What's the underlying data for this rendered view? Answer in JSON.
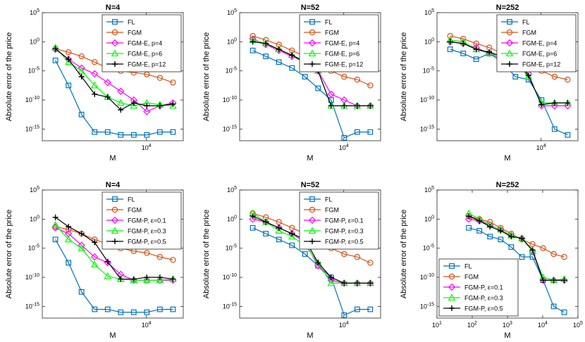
{
  "chart_data": [
    {
      "type": "line",
      "title": "N=4",
      "xlabel": "M",
      "ylabel": "Absolute error of the price",
      "x_scale": "log",
      "y_scale": "log",
      "xlim_log10": [
        1.6,
        4.85
      ],
      "ylim_log10": [
        -17,
        5
      ],
      "xticks": [
        {
          "log": 4,
          "base": "10",
          "exp": "4"
        }
      ],
      "yticks": [
        {
          "log": 5,
          "base": "10",
          "exp": "5"
        },
        {
          "log": 0,
          "base": "10",
          "exp": "0"
        },
        {
          "log": -5,
          "base": "10",
          "exp": "-5"
        },
        {
          "log": -10,
          "base": "10",
          "exp": "-10"
        },
        {
          "log": -15,
          "base": "10",
          "exp": "-15"
        }
      ],
      "legend_position": "top-right",
      "x": [
        80,
        160,
        320,
        640,
        1280,
        2560,
        5120,
        10240,
        20480,
        40960
      ],
      "series": [
        {
          "name": "FL",
          "color": "#0072BD",
          "marker": "square",
          "log10_values": [
            -3.2,
            -7.5,
            -12.5,
            -15.5,
            -15.5,
            -16.0,
            -16.0,
            -16.0,
            -15.5,
            -15.5
          ]
        },
        {
          "name": "FGM",
          "color": "#D95319",
          "marker": "circle",
          "log10_values": [
            -1.2,
            -1.8,
            -2.5,
            -3.5,
            -4.5,
            -5.0,
            -5.3,
            -5.6,
            -6.2,
            -7.0
          ]
        },
        {
          "name": "FGM-E, p=4",
          "color": "#FF00FF",
          "marker": "diamond",
          "x": [
            80,
            160,
            320,
            640,
            1280,
            2560,
            5120,
            10240,
            20480,
            40960
          ],
          "log10_values": [
            -1.3,
            -3.0,
            -4.5,
            -5.5,
            -7.0,
            -8.5,
            -10.0,
            -12.0,
            -11.0,
            -10.5
          ]
        },
        {
          "name": "FGM-E, p=6",
          "color": "#00FF00",
          "marker": "triangle",
          "log10_values": [
            -1.0,
            -3.5,
            -5.0,
            -7.5,
            -9.5,
            -10.5,
            -11.0,
            -10.5,
            -10.8,
            -11.0
          ]
        },
        {
          "name": "FGM-E, p=12",
          "color": "#000000",
          "marker": "plus",
          "log10_values": [
            -1.2,
            -3.0,
            -6.0,
            -9.0,
            -9.5,
            -11.7,
            -10.5,
            -11.0,
            -11.0,
            -10.7
          ]
        }
      ]
    },
    {
      "type": "line",
      "title": "N=52",
      "xlabel": "M",
      "ylabel": "Absolute error of the price",
      "x_scale": "log",
      "y_scale": "log",
      "xlim_log10": [
        1.6,
        4.85
      ],
      "ylim_log10": [
        -17,
        5
      ],
      "xticks": [
        {
          "log": 4,
          "base": "10",
          "exp": "4"
        }
      ],
      "yticks": [
        {
          "log": 5,
          "base": "10",
          "exp": "5"
        },
        {
          "log": 0,
          "base": "10",
          "exp": "0"
        },
        {
          "log": -5,
          "base": "10",
          "exp": "-5"
        },
        {
          "log": -10,
          "base": "10",
          "exp": "-10"
        },
        {
          "log": -15,
          "base": "10",
          "exp": "-15"
        }
      ],
      "legend_position": "top-right",
      "x": [
        80,
        160,
        320,
        640,
        1280,
        2560,
        5120,
        10240,
        20480,
        40960
      ],
      "series": [
        {
          "name": "FL",
          "color": "#0072BD",
          "marker": "square",
          "log10_values": [
            -1.5,
            -2.5,
            -3.5,
            -4.5,
            -6.0,
            -8.0,
            -10.0,
            -16.5,
            -15.5,
            -15.5
          ]
        },
        {
          "name": "FGM",
          "color": "#D95319",
          "marker": "circle",
          "log10_values": [
            1.0,
            0.3,
            -0.5,
            -1.5,
            -2.5,
            -3.8,
            -5.0,
            -6.0,
            -6.5,
            -7.5
          ]
        },
        {
          "name": "FGM-E, p=4",
          "color": "#FF00FF",
          "marker": "diamond",
          "log10_values": [
            0.5,
            -0.5,
            -1.5,
            -2.5,
            -3.5,
            -5.0,
            -9.0,
            -10.0,
            -11.0,
            -11.0
          ]
        },
        {
          "name": "FGM-E, p=6",
          "color": "#00FF00",
          "marker": "triangle",
          "log10_values": [
            0.3,
            -0.3,
            -1.3,
            -2.3,
            -3.3,
            -5.0,
            -11.0,
            -11.0,
            -11.0,
            -11.0
          ]
        },
        {
          "name": "FGM-E, p=12",
          "color": "#000000",
          "marker": "plus",
          "log10_values": [
            0.0,
            -0.3,
            -1.3,
            -2.3,
            -3.5,
            -5.0,
            -11.0,
            -11.0,
            -11.0,
            -11.0
          ]
        }
      ]
    },
    {
      "type": "line",
      "title": "N=252",
      "xlabel": "M",
      "ylabel": "Absolute error of the price",
      "x_scale": "log",
      "y_scale": "log",
      "xlim_log10": [
        1.6,
        4.85
      ],
      "ylim_log10": [
        -17,
        5
      ],
      "xticks": [
        {
          "log": 4,
          "base": "10",
          "exp": "4"
        }
      ],
      "yticks": [
        {
          "log": 5,
          "base": "10",
          "exp": "5"
        },
        {
          "log": 0,
          "base": "10",
          "exp": "0"
        },
        {
          "log": -5,
          "base": "10",
          "exp": "-5"
        },
        {
          "log": -10,
          "base": "10",
          "exp": "-10"
        },
        {
          "log": -15,
          "base": "10",
          "exp": "-15"
        }
      ],
      "legend_position": "top-right",
      "x": [
        80,
        160,
        320,
        640,
        1280,
        2560,
        5120,
        10240,
        20480,
        40960
      ],
      "series": [
        {
          "name": "FL",
          "color": "#0072BD",
          "marker": "square",
          "log10_values": [
            -1.3,
            -2.0,
            -3.0,
            -2.0,
            -3.5,
            -6.0,
            -6.5,
            -10.0,
            -15.0,
            -16.0
          ]
        },
        {
          "name": "FGM",
          "color": "#D95319",
          "marker": "circle",
          "log10_values": [
            1.0,
            0.5,
            -0.3,
            -1.0,
            -2.0,
            -3.0,
            -4.0,
            -5.0,
            -6.0,
            -6.5
          ]
        },
        {
          "name": "FGM-E, p=4",
          "color": "#FF00FF",
          "marker": "diamond",
          "log10_values": [
            0.0,
            -0.3,
            -1.0,
            -2.0,
            -3.0,
            -3.0,
            -5.5,
            -11.0,
            -11.0,
            -11.0
          ]
        },
        {
          "name": "FGM-E, p=6",
          "color": "#00FF00",
          "marker": "triangle",
          "log10_values": [
            0.3,
            0.0,
            -1.3,
            -2.0,
            -2.5,
            -3.3,
            -6.0,
            -10.5,
            -10.5,
            -10.5
          ]
        },
        {
          "name": "FGM-E, p=12",
          "color": "#000000",
          "marker": "plus",
          "log10_values": [
            0.0,
            -0.3,
            -1.3,
            -1.8,
            -2.5,
            -3.0,
            -5.8,
            -10.8,
            -10.5,
            -10.5
          ]
        }
      ]
    },
    {
      "type": "line",
      "title": "N=4",
      "xlabel": "M",
      "ylabel": "Absolute error of the price",
      "x_scale": "log",
      "y_scale": "log",
      "xlim_log10": [
        1.6,
        4.85
      ],
      "ylim_log10": [
        -17,
        5
      ],
      "xticks": [
        {
          "log": 4,
          "base": "10",
          "exp": "4"
        }
      ],
      "yticks": [
        {
          "log": 5,
          "base": "10",
          "exp": "5"
        },
        {
          "log": 0,
          "base": "10",
          "exp": "0"
        },
        {
          "log": -5,
          "base": "10",
          "exp": "-5"
        },
        {
          "log": -10,
          "base": "10",
          "exp": "-10"
        },
        {
          "log": -15,
          "base": "10",
          "exp": "-15"
        }
      ],
      "legend_position": "top-right",
      "x": [
        80,
        160,
        320,
        640,
        1280,
        2560,
        5120,
        10240,
        20480,
        40960
      ],
      "series": [
        {
          "name": "FL",
          "color": "#0072BD",
          "marker": "square",
          "log10_values": [
            -3.5,
            -7.5,
            -12.5,
            -15.5,
            -15.5,
            -16.0,
            -16.0,
            -16.0,
            -15.5,
            -15.5
          ]
        },
        {
          "name": "FGM",
          "color": "#D95319",
          "marker": "circle",
          "log10_values": [
            -1.3,
            -1.8,
            -2.5,
            -3.5,
            -4.3,
            -5.0,
            -5.5,
            -5.8,
            -6.5,
            -7.0
          ]
        },
        {
          "name": "FGM-P, ε=0.1",
          "color": "#FF00FF",
          "marker": "diamond",
          "log10_values": [
            -1.5,
            -2.5,
            -4.5,
            -6.5,
            -7.5,
            -9.5,
            -10.5,
            -10.5,
            -10.5,
            -10.5
          ]
        },
        {
          "name": "FGM-P, ε=0.3",
          "color": "#00FF00",
          "marker": "triangle",
          "log10_values": [
            -1.0,
            -3.5,
            -5.0,
            -7.8,
            -9.8,
            -10.3,
            -10.5,
            -10.5,
            -10.5,
            -10.3
          ]
        },
        {
          "name": "FGM-P, ε=0.5",
          "color": "#000000",
          "marker": "plus",
          "log10_values": [
            0.3,
            -1.3,
            -2.5,
            -4.0,
            -7.3,
            -10.3,
            -10.3,
            -10.0,
            -10.0,
            -10.3
          ]
        }
      ]
    },
    {
      "type": "line",
      "title": "N=52",
      "xlabel": "M",
      "ylabel": "Absolute error of the price",
      "x_scale": "log",
      "y_scale": "log",
      "xlim_log10": [
        1.6,
        4.85
      ],
      "ylim_log10": [
        -17,
        5
      ],
      "xticks": [
        {
          "log": 4,
          "base": "10",
          "exp": "4"
        }
      ],
      "yticks": [
        {
          "log": 5,
          "base": "10",
          "exp": "5"
        },
        {
          "log": 0,
          "base": "10",
          "exp": "0"
        },
        {
          "log": -5,
          "base": "10",
          "exp": "-5"
        },
        {
          "log": -10,
          "base": "10",
          "exp": "-10"
        },
        {
          "log": -15,
          "base": "10",
          "exp": "-15"
        }
      ],
      "legend_position": "top-right",
      "x": [
        80,
        160,
        320,
        640,
        1280,
        2560,
        5120,
        10240,
        20480,
        40960
      ],
      "series": [
        {
          "name": "FL",
          "color": "#0072BD",
          "marker": "square",
          "log10_values": [
            -1.5,
            -2.5,
            -3.5,
            -4.5,
            -6.0,
            -8.0,
            -10.0,
            -16.5,
            -15.5,
            -15.5
          ]
        },
        {
          "name": "FGM",
          "color": "#D95319",
          "marker": "circle",
          "log10_values": [
            1.0,
            0.3,
            -0.5,
            -1.5,
            -2.5,
            -3.8,
            -5.0,
            -6.0,
            -6.5,
            -7.5
          ]
        },
        {
          "name": "FGM-P, ε=0.1",
          "color": "#FF00FF",
          "marker": "diamond",
          "log10_values": [
            0.0,
            -0.5,
            -1.5,
            -2.5,
            -4.0,
            -8.0,
            -10.5,
            -11.0,
            -11.0,
            -11.0
          ]
        },
        {
          "name": "FGM-P, ε=0.3",
          "color": "#00FF00",
          "marker": "triangle",
          "log10_values": [
            1.0,
            -0.5,
            -2.0,
            -3.0,
            -4.5,
            -7.5,
            -11.0,
            -11.0,
            -11.0,
            -11.0
          ]
        },
        {
          "name": "FGM-P, ε=0.5",
          "color": "#000000",
          "marker": "plus",
          "log10_values": [
            0.5,
            -0.5,
            -1.5,
            -2.5,
            -3.5,
            -7.5,
            -10.0,
            -11.0,
            -11.0,
            -11.0
          ]
        }
      ]
    },
    {
      "type": "line",
      "title": "N=252",
      "xlabel": "M",
      "ylabel": "Absolute error of the price",
      "x_scale": "log",
      "y_scale": "log",
      "xlim_log10": [
        1,
        5
      ],
      "ylim_log10": [
        -17,
        5
      ],
      "xticks": [
        {
          "log": 1,
          "base": "10",
          "exp": "1"
        },
        {
          "log": 2,
          "base": "10",
          "exp": "2"
        },
        {
          "log": 3,
          "base": "10",
          "exp": "3"
        },
        {
          "log": 4,
          "base": "10",
          "exp": "4"
        },
        {
          "log": 5,
          "base": "10",
          "exp": "5"
        }
      ],
      "yticks": [
        {
          "log": 5,
          "base": "10",
          "exp": "5"
        },
        {
          "log": 0,
          "base": "10",
          "exp": "0"
        },
        {
          "log": -5,
          "base": "10",
          "exp": "-5"
        },
        {
          "log": -10,
          "base": "10",
          "exp": "-10"
        },
        {
          "log": -15,
          "base": "10",
          "exp": "-15"
        }
      ],
      "legend_position": "bottom-left",
      "x": [
        80,
        160,
        320,
        640,
        1280,
        2560,
        5120,
        10240,
        20480,
        40960
      ],
      "series": [
        {
          "name": "FL",
          "color": "#0072BD",
          "marker": "square",
          "log10_values": [
            -1.5,
            -2.0,
            -3.0,
            -3.5,
            -4.8,
            -6.5,
            -6.5,
            -10.5,
            -15.0,
            -16.0
          ]
        },
        {
          "name": "FGM",
          "color": "#D95319",
          "marker": "circle",
          "log10_values": [
            0.5,
            0.0,
            -0.5,
            -1.5,
            -2.5,
            -3.5,
            -4.3,
            -5.0,
            -6.0,
            -6.5
          ]
        },
        {
          "name": "FGM-P, ε=0.1",
          "color": "#FF00FF",
          "marker": "diamond",
          "log10_values": [
            0.0,
            -0.3,
            -1.0,
            -1.8,
            -2.8,
            -3.3,
            -5.5,
            -10.5,
            -10.5,
            -10.5
          ]
        },
        {
          "name": "FGM-P, ε=0.3",
          "color": "#00FF00",
          "marker": "triangle",
          "log10_values": [
            1.0,
            0.0,
            -1.0,
            -1.8,
            -2.8,
            -3.3,
            -5.5,
            -10.0,
            -10.5,
            -10.3
          ]
        },
        {
          "name": "FGM-P, ε=0.5",
          "color": "#000000",
          "marker": "plus",
          "log10_values": [
            0.5,
            -0.3,
            -1.3,
            -2.0,
            -3.0,
            -3.3,
            -5.3,
            -10.5,
            -10.5,
            -10.5
          ]
        }
      ]
    }
  ]
}
